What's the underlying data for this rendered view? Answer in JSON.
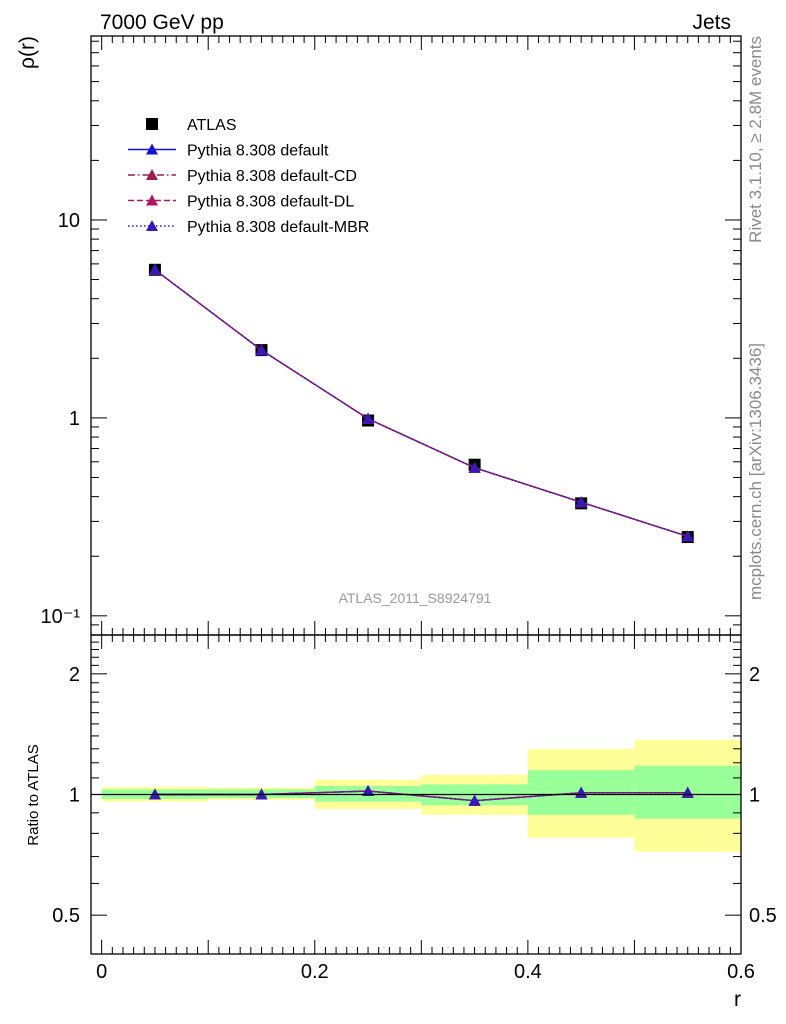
{
  "header": {
    "left": "7000 GeV pp",
    "right": "Jets"
  },
  "side_labels": {
    "rivet": "Rivet 3.1.10, ≥ 2.8M events",
    "mcplots": "mcplots.cern.ch [arXiv:1306.3436]"
  },
  "watermark": "ATLAS_2011_S8924791",
  "chart_data": [
    {
      "type": "line",
      "ylabel": "ρ(r)",
      "xlabel": "r",
      "xlim": [
        -0.01,
        0.6
      ],
      "ylim": [
        0.08,
        85
      ],
      "log_y": true,
      "y_tick_labels": [
        "10⁻¹",
        "1",
        "10"
      ],
      "x": [
        0.05,
        0.15,
        0.25,
        0.35,
        0.45,
        0.55
      ],
      "series": [
        {
          "name": "ATLAS",
          "values": [
            5.6,
            2.2,
            0.97,
            0.58,
            0.37,
            0.25
          ],
          "color": "#000000",
          "marker": "square",
          "style": "none"
        },
        {
          "name": "Pythia 8.308 default",
          "values": [
            5.6,
            2.2,
            0.99,
            0.56,
            0.375,
            0.252
          ],
          "color": "#1414d9",
          "marker": "triangle",
          "style": "solid"
        },
        {
          "name": "Pythia 8.308 default-CD",
          "values": [
            5.6,
            2.2,
            0.99,
            0.56,
            0.375,
            0.252
          ],
          "color": "#9c1e4a",
          "marker": "triangle",
          "style": "dashdot"
        },
        {
          "name": "Pythia 8.308 default-DL",
          "values": [
            5.6,
            2.2,
            0.99,
            0.56,
            0.375,
            0.252
          ],
          "color": "#b0155f",
          "marker": "triangle",
          "style": "dashed"
        },
        {
          "name": "Pythia 8.308 default-MBR",
          "values": [
            5.6,
            2.2,
            0.99,
            0.56,
            0.375,
            0.252
          ],
          "color": "#3818b8",
          "marker": "triangle",
          "style": "dotted"
        }
      ],
      "legend_position": "top-left",
      "grid": false
    },
    {
      "type": "line",
      "ylabel": "Ratio to ATLAS",
      "xlabel": "r",
      "xlim": [
        -0.01,
        0.6
      ],
      "ylim": [
        0.4,
        2.5
      ],
      "log_y": true,
      "x_tick_labels": [
        "0",
        "0.2",
        "0.4",
        "0.6"
      ],
      "y_tick_labels": [
        "0.5",
        "1",
        "2"
      ],
      "x": [
        0.05,
        0.15,
        0.25,
        0.35,
        0.45,
        0.55
      ],
      "bands": {
        "edges": [
          0.0,
          0.1,
          0.2,
          0.3,
          0.4,
          0.5,
          0.6
        ],
        "yellow": {
          "color": "#ffff99",
          "low": [
            0.96,
            0.97,
            0.92,
            0.89,
            0.78,
            0.72
          ],
          "high": [
            1.045,
            1.04,
            1.09,
            1.12,
            1.3,
            1.37
          ]
        },
        "green": {
          "color": "#99ff99",
          "low": [
            0.975,
            0.98,
            0.96,
            0.94,
            0.89,
            0.87
          ],
          "high": [
            1.03,
            1.03,
            1.05,
            1.06,
            1.15,
            1.18
          ]
        }
      },
      "series": [
        {
          "name": "Pythia 8.308 default",
          "values": [
            1.0,
            1.0,
            1.02,
            0.965,
            1.01,
            1.01
          ],
          "color": "#1414d9",
          "style": "solid"
        },
        {
          "name": "Pythia 8.308 default-CD",
          "values": [
            1.0,
            1.0,
            1.02,
            0.965,
            1.01,
            1.01
          ],
          "color": "#9c1e4a",
          "style": "dashdot"
        },
        {
          "name": "Pythia 8.308 default-DL",
          "values": [
            1.0,
            1.0,
            1.02,
            0.965,
            1.01,
            1.01
          ],
          "color": "#b0155f",
          "style": "dashed"
        },
        {
          "name": "Pythia 8.308 default-MBR",
          "values": [
            1.0,
            1.0,
            1.02,
            0.965,
            1.01,
            1.01
          ],
          "color": "#3818b8",
          "style": "dotted"
        }
      ],
      "grid": false
    }
  ]
}
